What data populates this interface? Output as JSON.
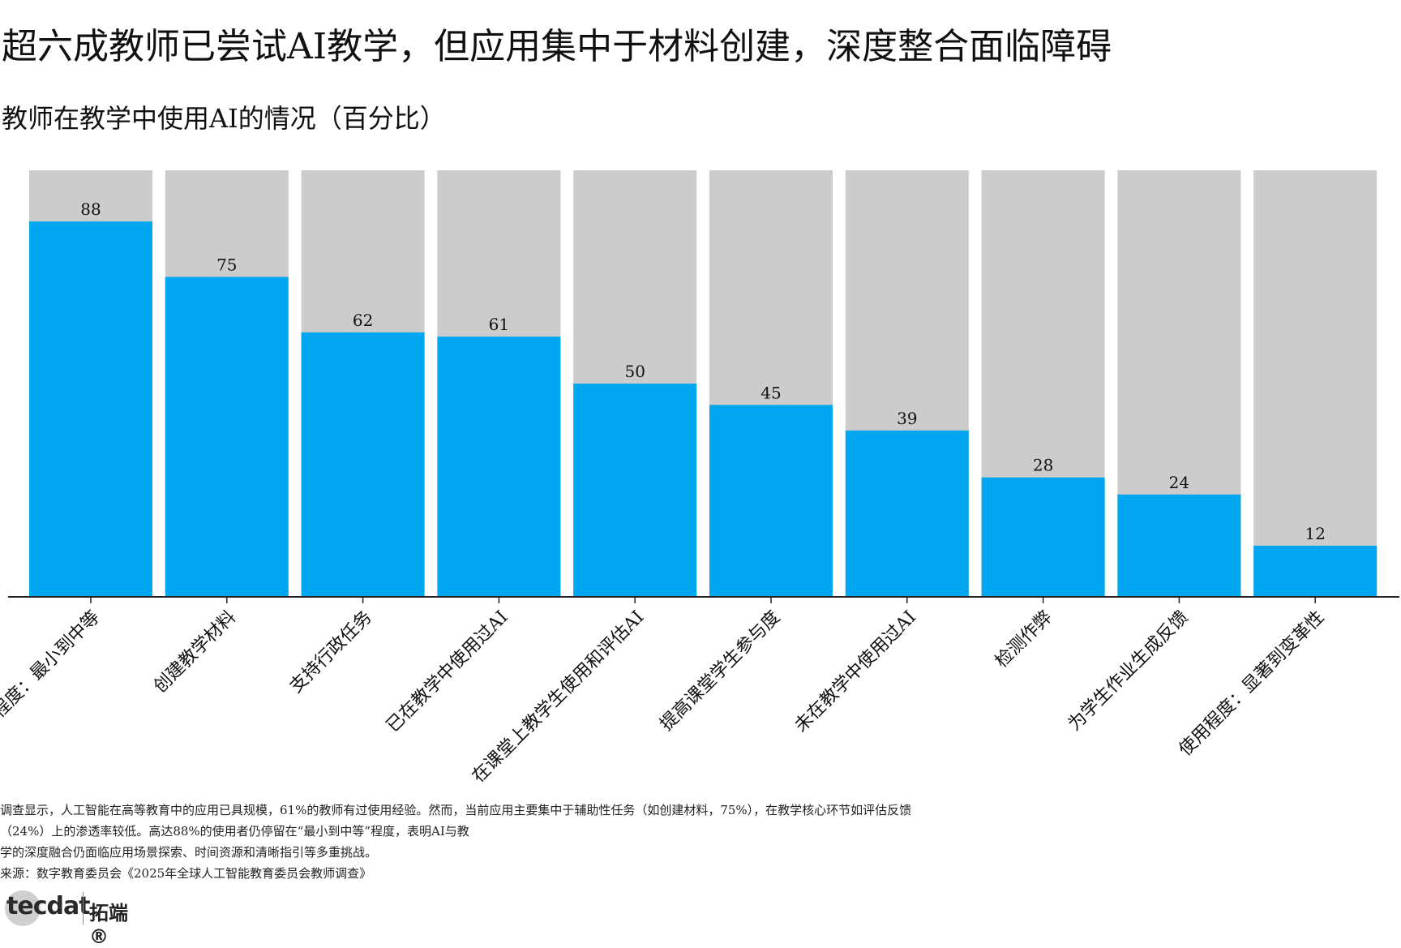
{
  "title": "超六成教师已尝试AI教学，但应用集中于材料创建，深度整合面临障碍",
  "subtitle": "教师在教学中使用AI的情况（百分比）",
  "chart_data": {
    "type": "bar",
    "categories": [
      "使用程度：最小到中等",
      "创建教学材料",
      "支持行政任务",
      "已在教学中使用过AI",
      "在课堂上教学生使用和评估AI",
      "提高课堂学生参与度",
      "未在教学中使用过AI",
      "检测作弊",
      "为学生作业生成反馈",
      "使用程度：显著到变革性"
    ],
    "values": [
      88,
      75,
      62,
      61,
      50,
      45,
      39,
      28,
      24,
      12
    ],
    "ylim": [
      0,
      100
    ],
    "bar_color": "#00a6f0",
    "background_bar_color": "#cccccc",
    "grid": false,
    "legend": "none"
  },
  "notes": [
    "调查显示，人工智能在高等教育中的应用已具规模，61%的教师有过使用经验。然而，当前应用主要集中于辅助性任务（如创建材料，75%），在教学核心环节如评估反馈",
    "（24%）上的渗透率较低。高达88%的使用者仍停留在“最小到中等”程度，表明AI与教",
    "学的深度融合仍面临应用场景探索、时间资源和清晰指引等多重挑战。",
    "来源：数字教育委员会《2025年全球人工智能教育委员会教师调查》"
  ],
  "logo": {
    "word": "tecdat",
    "cn": "拓端®"
  }
}
